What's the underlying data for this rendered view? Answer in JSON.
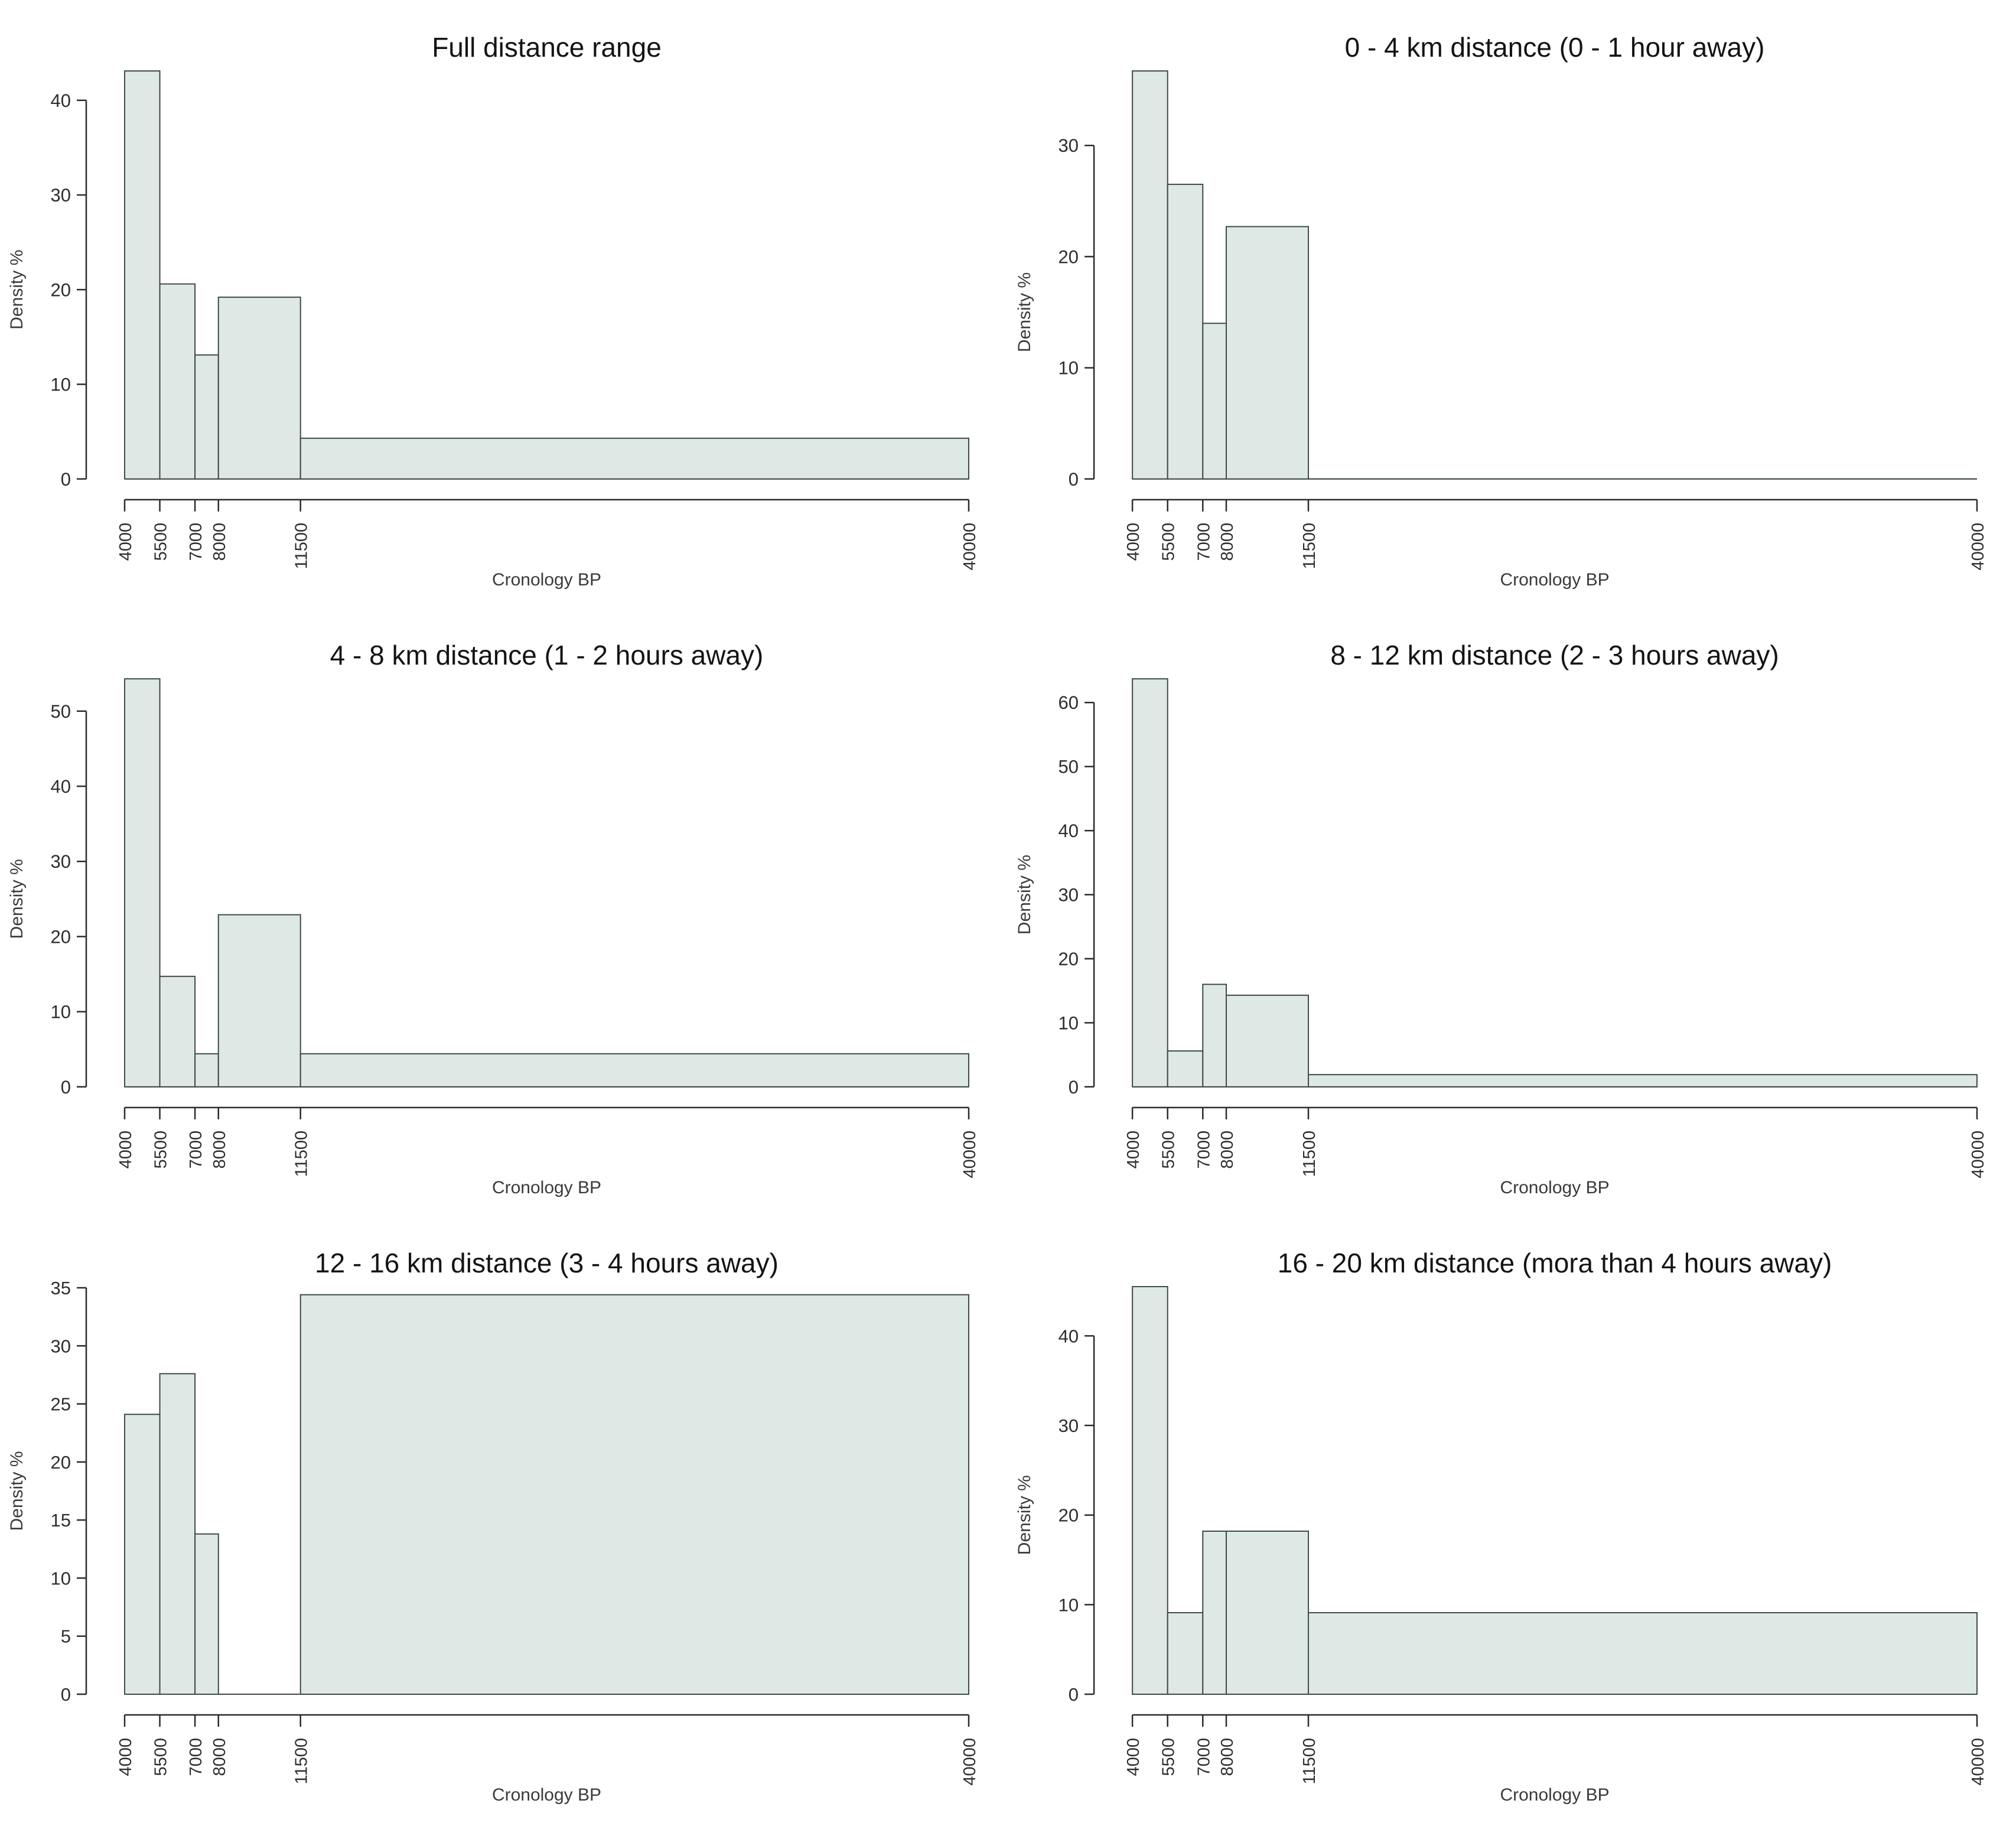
{
  "page": {
    "background": "#ffffff"
  },
  "colors": {
    "bar_fill": "#dee9e6",
    "bar_stroke": "#3f4a48",
    "axis_color": "#2b2b2b",
    "tick_label_color": "#2e2e2e",
    "axis_label_color": "#3a3a3a",
    "title_color": "#141414"
  },
  "chart_data": [
    {
      "type": "bar",
      "title": "Full distance range",
      "xlabel": "Cronology BP",
      "ylabel": "Density %",
      "x_breaks": [
        4000,
        5500,
        7000,
        8000,
        11500,
        40000
      ],
      "x_tick_labels": [
        "4000",
        "5500",
        "7000",
        "8000",
        "11500",
        "40000"
      ],
      "values": [
        43.1,
        20.6,
        13.1,
        19.2,
        4.3
      ],
      "y_ticks": [
        0,
        10,
        20,
        30,
        40
      ],
      "ylim": [
        0,
        43.1
      ],
      "xlim": [
        4000,
        40000
      ],
      "grid": "off",
      "legend": "none"
    },
    {
      "type": "bar",
      "title": "0 - 4 km distance (0 - 1 hour away)",
      "xlabel": "Cronology BP",
      "ylabel": "Density %",
      "x_breaks": [
        4000,
        5500,
        7000,
        8000,
        11500,
        40000
      ],
      "x_tick_labels": [
        "4000",
        "5500",
        "7000",
        "8000",
        "11500",
        "40000"
      ],
      "values": [
        36.7,
        26.5,
        14.0,
        22.7,
        0
      ],
      "y_ticks": [
        0,
        10,
        20,
        30
      ],
      "ylim": [
        0,
        36.7
      ],
      "xlim": [
        4000,
        40000
      ],
      "grid": "off",
      "legend": "none"
    },
    {
      "type": "bar",
      "title": "4 - 8 km distance (1 - 2 hours away)",
      "xlabel": "Cronology BP",
      "ylabel": "Density %",
      "x_breaks": [
        4000,
        5500,
        7000,
        8000,
        11500,
        40000
      ],
      "x_tick_labels": [
        "4000",
        "5500",
        "7000",
        "8000",
        "11500",
        "40000"
      ],
      "values": [
        54.3,
        14.7,
        4.4,
        22.9,
        4.4
      ],
      "y_ticks": [
        0,
        10,
        20,
        30,
        40,
        50
      ],
      "ylim": [
        0,
        54.3
      ],
      "xlim": [
        4000,
        40000
      ],
      "grid": "off",
      "legend": "none"
    },
    {
      "type": "bar",
      "title": "8 - 12 km distance (2 - 3 hours away)",
      "xlabel": "Cronology BP",
      "ylabel": "Density %",
      "x_breaks": [
        4000,
        5500,
        7000,
        8000,
        11500,
        40000
      ],
      "x_tick_labels": [
        "4000",
        "5500",
        "7000",
        "8000",
        "11500",
        "40000"
      ],
      "values": [
        63.7,
        5.6,
        16.0,
        14.3,
        1.9
      ],
      "y_ticks": [
        0,
        10,
        20,
        30,
        40,
        50,
        60
      ],
      "ylim": [
        0,
        63.7
      ],
      "xlim": [
        4000,
        40000
      ],
      "grid": "off",
      "legend": "none"
    },
    {
      "type": "bar",
      "title": "12 - 16 km distance (3 - 4 hours away)",
      "xlabel": "Cronology BP",
      "ylabel": "Density %",
      "x_breaks": [
        4000,
        5500,
        7000,
        8000,
        11500,
        40000
      ],
      "x_tick_labels": [
        "4000",
        "5500",
        "7000",
        "8000",
        "11500",
        "40000"
      ],
      "values": [
        24.1,
        27.6,
        13.8,
        0,
        34.4
      ],
      "y_ticks": [
        0,
        5,
        10,
        15,
        20,
        25,
        30,
        35
      ],
      "ylim": [
        0,
        35.1
      ],
      "xlim": [
        4000,
        40000
      ],
      "grid": "off",
      "legend": "none"
    },
    {
      "type": "bar",
      "title": "16 - 20 km distance (mora than 4 hours away)",
      "xlabel": "Cronology BP",
      "ylabel": "Density %",
      "x_breaks": [
        4000,
        5500,
        7000,
        8000,
        11500,
        40000
      ],
      "x_tick_labels": [
        "4000",
        "5500",
        "7000",
        "8000",
        "11500",
        "40000"
      ],
      "values": [
        45.5,
        9.1,
        18.2,
        18.2,
        9.1
      ],
      "y_ticks": [
        0,
        10,
        20,
        30,
        40
      ],
      "ylim": [
        0,
        45.5
      ],
      "xlim": [
        4000,
        40000
      ],
      "grid": "off",
      "legend": "none"
    }
  ]
}
